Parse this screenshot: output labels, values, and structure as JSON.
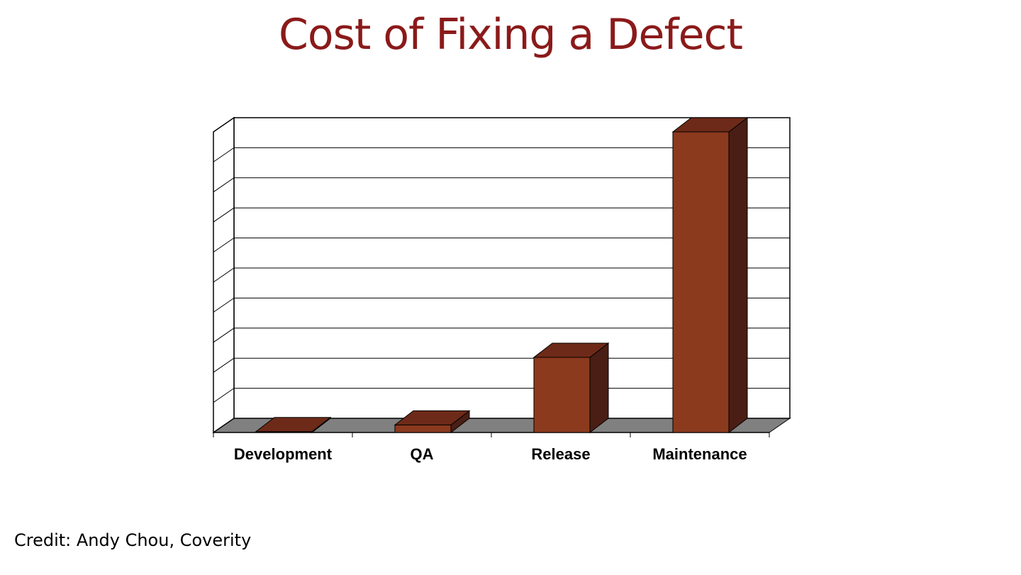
{
  "chart_data": {
    "type": "bar",
    "title": "Cost of Fixing a Defect",
    "categories": [
      "Development",
      "QA",
      "Release",
      "Maintenance"
    ],
    "values": [
      0.3,
      2.5,
      25,
      100
    ],
    "xlabel": "",
    "ylabel": "",
    "ylim": [
      0,
      100
    ],
    "y_tick_labels_shown": false,
    "grid": true,
    "style": "3d-column",
    "colors": {
      "front": "#8b3a1e",
      "top": "#6e2a18",
      "side": "#4a1e14",
      "floor": "#808080"
    }
  },
  "credit": "Credit: Andy Chou, Coverity"
}
